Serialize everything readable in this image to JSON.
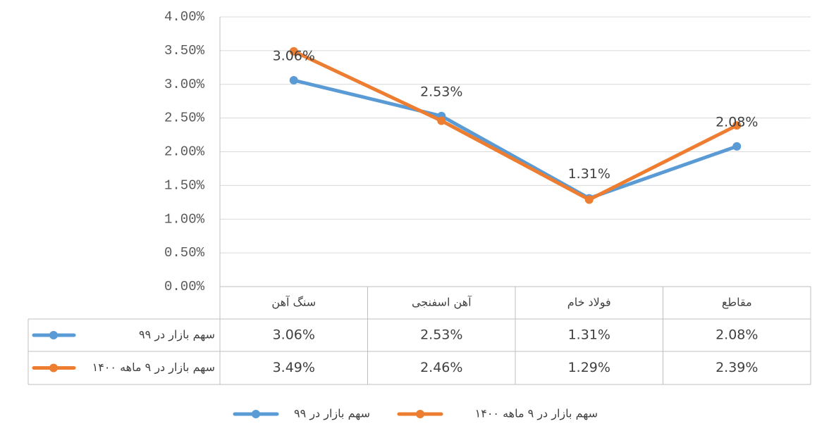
{
  "chart_data": {
    "type": "line",
    "categories": [
      "سنگ آهن",
      "آهن اسفنجی",
      "فولاد خام",
      "مقاطع"
    ],
    "series": [
      {
        "name": "سهم بازار در ۹۹",
        "color": "#5b9bd5",
        "values": [
          3.06,
          2.53,
          1.31,
          2.08
        ],
        "value_labels": [
          "3.06%",
          "2.53%",
          "1.31%",
          "2.08%"
        ],
        "data_labels": true
      },
      {
        "name": "سهم بازار در ۹ ماهه ۱۴۰۰",
        "color": "#ed7d31",
        "values": [
          3.49,
          2.46,
          1.29,
          2.39
        ],
        "value_labels": [
          "3.49%",
          "2.46%",
          "1.29%",
          "2.39%"
        ],
        "data_labels": false
      }
    ],
    "ylim": [
      0,
      4
    ],
    "yticks": [
      {
        "value": 0,
        "label": "0.00%"
      },
      {
        "value": 0.5,
        "label": "0.50%"
      },
      {
        "value": 1,
        "label": "1.00%"
      },
      {
        "value": 1.5,
        "label": "1.50%"
      },
      {
        "value": 2,
        "label": "2.00%"
      },
      {
        "value": 2.5,
        "label": "2.50%"
      },
      {
        "value": 3,
        "label": "3.00%"
      },
      {
        "value": 3.5,
        "label": "3.50%"
      },
      {
        "value": 4,
        "label": "4.00%"
      }
    ],
    "grid": true,
    "data_table": true,
    "legend": "bottom"
  }
}
